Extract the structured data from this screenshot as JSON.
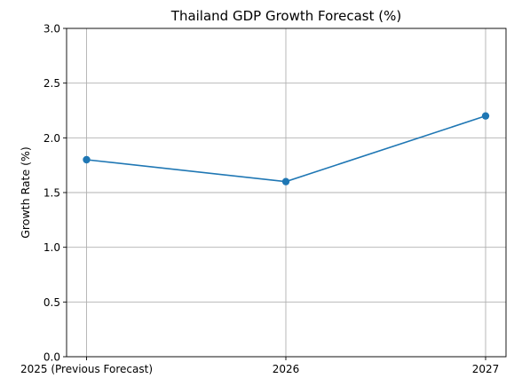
{
  "chart_data": {
    "type": "line",
    "title": "Thailand GDP Growth Forecast (%)",
    "xlabel": "",
    "ylabel": "Growth Rate (%)",
    "categories": [
      "2025 (Previous Forecast)",
      "2026",
      "2027"
    ],
    "series": [
      {
        "values": [
          1.8,
          1.6,
          2.2
        ],
        "color": "#1f77b4",
        "marker": "circle"
      }
    ],
    "ylim": [
      0,
      3.0
    ],
    "yticks": [
      "0.0",
      "0.5",
      "1.0",
      "1.5",
      "2.0",
      "2.5",
      "3.0"
    ],
    "grid": true,
    "legend": "none"
  }
}
